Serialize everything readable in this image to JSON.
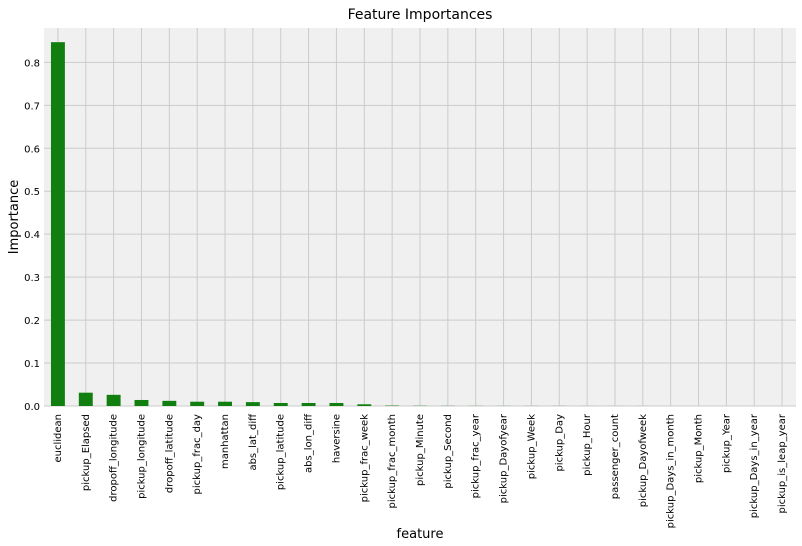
{
  "chart_data": {
    "type": "bar",
    "title": "Feature Importances",
    "xlabel": "feature",
    "ylabel": "Importance",
    "ylim": [
      0,
      0.88
    ],
    "yticks": [
      0.0,
      0.1,
      0.2,
      0.3,
      0.4,
      0.5,
      0.6,
      0.7,
      0.8
    ],
    "ytick_labels": [
      "0.0",
      "0.1",
      "0.2",
      "0.3",
      "0.4",
      "0.5",
      "0.6",
      "0.7",
      "0.8"
    ],
    "grid": true,
    "bar_color": "#107f10",
    "background_color": "#f0f0f0",
    "grid_color": "#cbcbcb",
    "categories": [
      "euclidean",
      "pickup_Elapsed",
      "dropoff_longitude",
      "pickup_longitude",
      "dropoff_latitude",
      "pickup_frac_day",
      "manhattan",
      "abs_lat_diff",
      "pickup_latitude",
      "abs_lon_diff",
      "haversine",
      "pickup_frac_week",
      "pickup_frac_month",
      "pickup_Minute",
      "pickup_Second",
      "pickup_frac_year",
      "pickup_Dayofyear",
      "pickup_Week",
      "pickup_Day",
      "pickup_Hour",
      "passenger_count",
      "pickup_Dayofweek",
      "pickup_Days_in_month",
      "pickup_Month",
      "pickup_Year",
      "pickup_Days_in_year",
      "pickup_is_leap_year"
    ],
    "values": [
      0.847,
      0.031,
      0.026,
      0.014,
      0.012,
      0.01,
      0.01,
      0.009,
      0.007,
      0.007,
      0.007,
      0.004,
      0.001,
      0.0005,
      0.0004,
      0.0003,
      0.0002,
      0.0002,
      0.0002,
      0.0001,
      0.0001,
      0.0001,
      0.0,
      0.0,
      0.0,
      0.0,
      0.0
    ]
  }
}
